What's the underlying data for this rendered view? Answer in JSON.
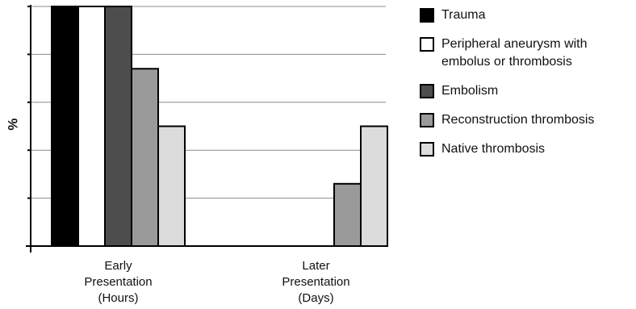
{
  "chart_data": {
    "type": "bar",
    "title": "",
    "xlabel": "",
    "ylabel": "%",
    "ylim": [
      0,
      100
    ],
    "yticks": [
      0,
      20,
      40,
      60,
      80,
      100
    ],
    "show_tick_labels": false,
    "grid": true,
    "legend_position": "right",
    "categories": [
      "Early\nPresentation\n(Hours)",
      "Later\nPresentation\n(Days)"
    ],
    "series": [
      {
        "name": "Trauma",
        "color": "#000000",
        "values": [
          100,
          0
        ]
      },
      {
        "name": "Peripheral aneurysm with\nembolus or thrombosis",
        "color": "#ffffff",
        "values": [
          100,
          0
        ]
      },
      {
        "name": "Embolism",
        "color": "#4d4d4d",
        "values": [
          100,
          0
        ]
      },
      {
        "name": "Reconstruction thrombosis",
        "color": "#9a9a9a",
        "values": [
          74,
          26
        ]
      },
      {
        "name": "Native thrombosis",
        "color": "#dcdcdc",
        "values": [
          50,
          50
        ]
      }
    ]
  }
}
